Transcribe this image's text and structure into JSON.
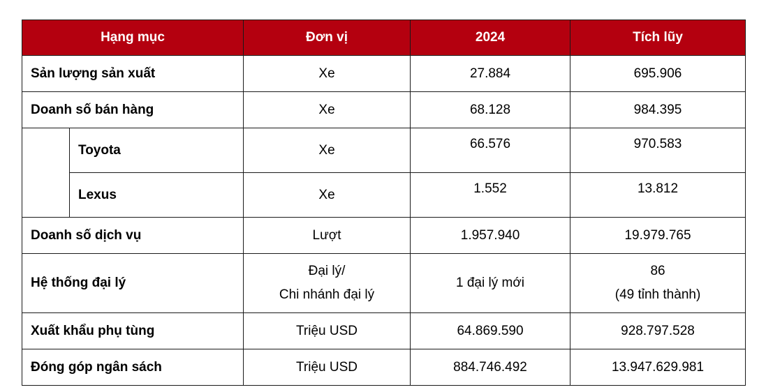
{
  "header": {
    "category": "Hạng mục",
    "unit": "Đơn vị",
    "year": "2024",
    "cumulative": "Tích lũy"
  },
  "rows": {
    "production": {
      "label": "Sản lượng sản xuất",
      "unit": "Xe",
      "year": "27.884",
      "cumulative": "695.906"
    },
    "sales": {
      "label": "Doanh số bán hàng",
      "unit": "Xe",
      "year": "68.128",
      "cumulative": "984.395"
    },
    "toyota": {
      "label": "Toyota",
      "unit": "Xe",
      "year": "66.576",
      "cumulative": "970.583"
    },
    "lexus": {
      "label": "Lexus",
      "unit": "Xe",
      "year": "1.552",
      "cumulative": "13.812"
    },
    "service": {
      "label": "Doanh số dịch vụ",
      "unit": "Lượt",
      "year": "1.957.940",
      "cumulative": "19.979.765"
    },
    "dealers": {
      "label": "Hệ thống đại lý",
      "unit_line1": "Đại lý/",
      "unit_line2": "Chi nhánh đại lý",
      "year": "1 đại lý mới",
      "cumulative_line1": "86",
      "cumulative_line2": "(49 tỉnh thành)"
    },
    "parts_export": {
      "label": "Xuất khẩu phụ tùng",
      "unit": "Triệu USD",
      "year": "64.869.590",
      "cumulative": "928.797.528"
    },
    "budget": {
      "label": "Đóng góp ngân sách",
      "unit": "Triệu USD",
      "year": "884.746.492",
      "cumulative": "13.947.629.981"
    }
  },
  "colors": {
    "header_background": "#b4000f",
    "header_text": "#ffffff",
    "border": "#1a1a1a"
  }
}
